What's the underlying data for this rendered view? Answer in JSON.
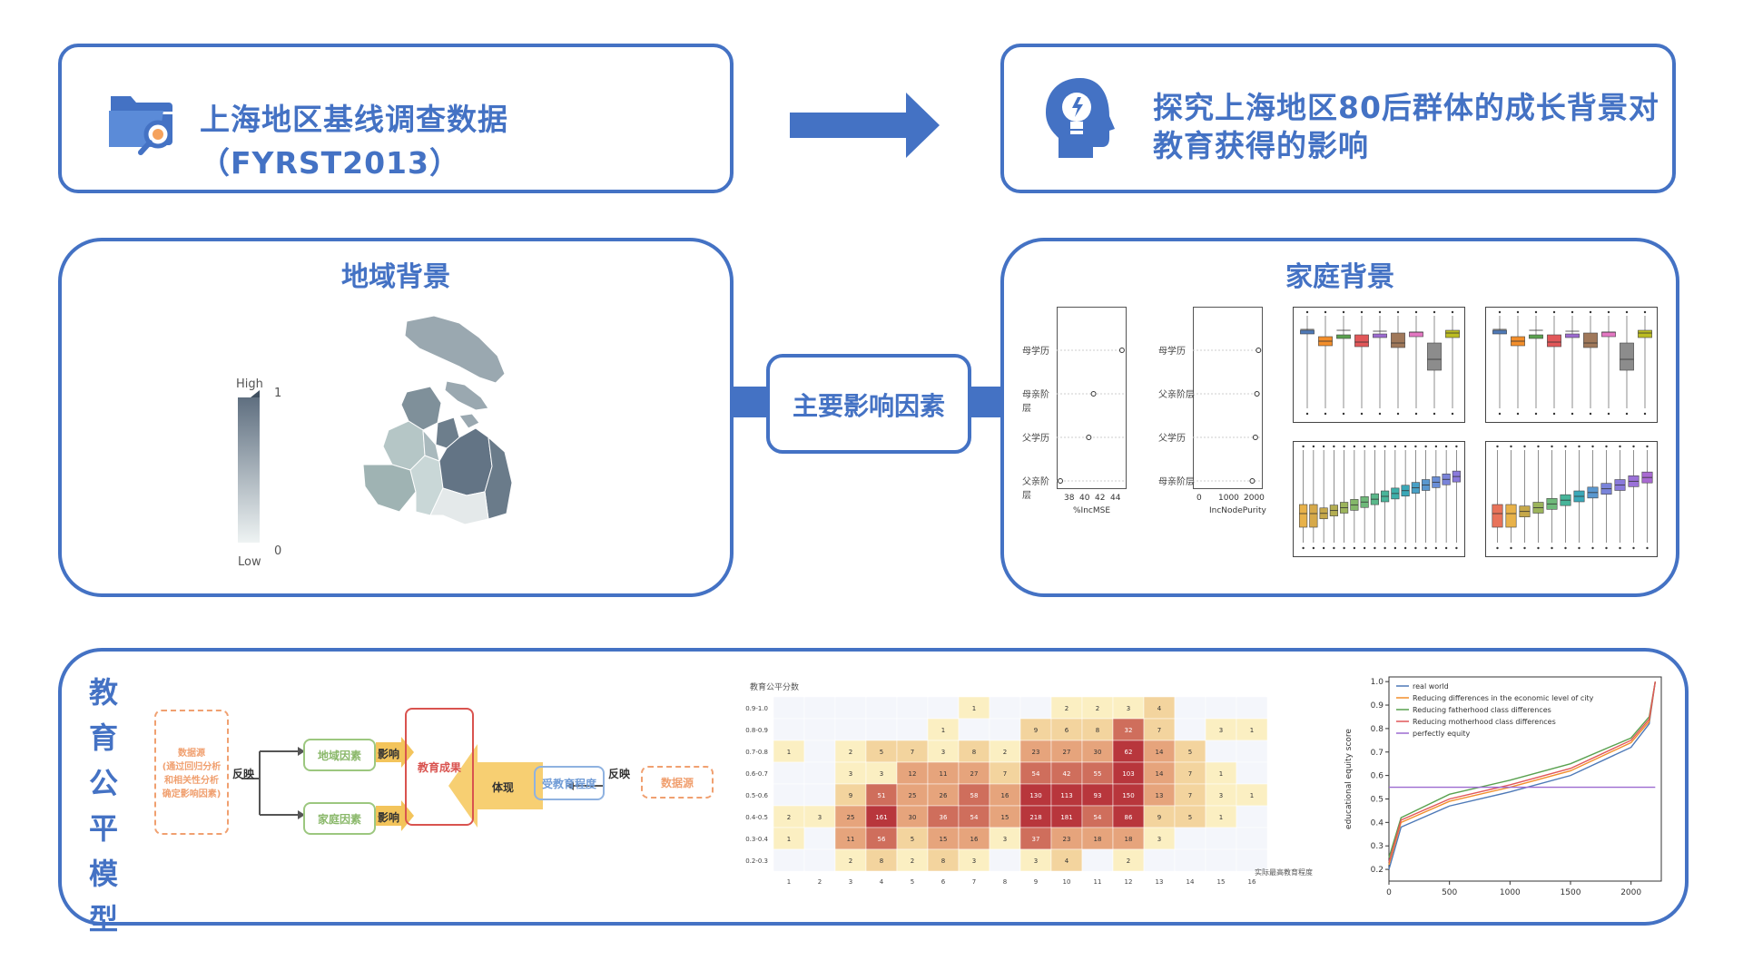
{
  "top": {
    "source_title": "上海地区基线调查数据（FYRST2013）",
    "goal_line1": "探究上海地区80后群体的成长背景对",
    "goal_line2": "教育获得的影响"
  },
  "middle": {
    "region_title": "地域背景",
    "family_title": "家庭背景",
    "center_label": "主要影响因素",
    "legend_high": "High",
    "legend_low": "Low",
    "legend_max": "1",
    "legend_min": "0",
    "importance": {
      "labels": [
        "母学历",
        "母亲阶层",
        "父学历",
        "父亲阶层"
      ],
      "mse_labels": [
        "母学历",
        "母亲阶层",
        "父学历",
        "父亲阶层"
      ],
      "mse_values": [
        44,
        41,
        40.5,
        37.5
      ],
      "mse_ticks": [
        "38",
        "40",
        "42",
        "44"
      ],
      "mse_xlabel": "%IncMSE",
      "purity_labels": [
        "母学历",
        "父亲阶层",
        "父学历",
        "母亲阶层"
      ],
      "purity_values": [
        2000,
        1950,
        1900,
        1800
      ],
      "purity_ticks": [
        "0",
        "1000",
        "2000"
      ],
      "purity_xlabel": "IncNodePurity"
    }
  },
  "bottom": {
    "vertical_title": [
      "教",
      "育",
      "公",
      "平",
      "模",
      "型"
    ],
    "flow": {
      "datasource_left": "数据源\n(通过回归分析和相关性分析确定影响因素)",
      "fanying1": "反映",
      "region_factor": "地域因素",
      "family_factor": "家庭因素",
      "yingxiang1": "影响",
      "yingxiang2": "影响",
      "outcome": "教育成果",
      "tixian": "体现",
      "degree": "受教育程度",
      "fanying2": "反映",
      "datasource_right": "数据源"
    },
    "heatmap": {
      "title": "教育公平分数",
      "xlabel": "实际最高教育程度",
      "rows": [
        "0.9-1.0",
        "0.8-0.9",
        "0.7-0.8",
        "0.6-0.7",
        "0.5-0.6",
        "0.4-0.5",
        "0.3-0.4",
        "0.2-0.3"
      ],
      "cols": [
        "1",
        "2",
        "3",
        "4",
        "5",
        "6",
        "7",
        "8",
        "9",
        "10",
        "11",
        "12",
        "13",
        "14",
        "15",
        "16"
      ],
      "values": [
        [
          0,
          0,
          0,
          0,
          0,
          0,
          1,
          0,
          0,
          2,
          2,
          3,
          4,
          0,
          0,
          0
        ],
        [
          0,
          0,
          0,
          0,
          0,
          1,
          0,
          0,
          9,
          6,
          8,
          32,
          7,
          0,
          3,
          1
        ],
        [
          1,
          0,
          2,
          5,
          7,
          3,
          8,
          2,
          23,
          27,
          30,
          62,
          14,
          5,
          0,
          0
        ],
        [
          0,
          0,
          3,
          3,
          12,
          11,
          27,
          7,
          54,
          42,
          55,
          103,
          14,
          7,
          1,
          0
        ],
        [
          0,
          0,
          9,
          51,
          25,
          26,
          58,
          16,
          130,
          113,
          93,
          150,
          13,
          7,
          3,
          1
        ],
        [
          2,
          3,
          25,
          161,
          30,
          36,
          54,
          15,
          218,
          181,
          54,
          86,
          9,
          5,
          1,
          0
        ],
        [
          1,
          0,
          11,
          56,
          5,
          15,
          16,
          3,
          37,
          23,
          18,
          18,
          3,
          0,
          0,
          0
        ],
        [
          0,
          0,
          2,
          8,
          2,
          8,
          3,
          0,
          3,
          4,
          0,
          2,
          0,
          0,
          0,
          0
        ]
      ]
    },
    "line_chart": {
      "ylabel": "educational equity score",
      "x_ticks": [
        "0",
        "500",
        "1000",
        "1500",
        "2000"
      ],
      "y_ticks": [
        "0.2",
        "0.3",
        "0.4",
        "0.5",
        "0.6",
        "0.7",
        "0.8",
        "0.9",
        "1.0"
      ],
      "legend": [
        {
          "name": "real world",
          "color": "#4e79b7"
        },
        {
          "name": "Reducing differences in the economic level of city",
          "color": "#f28e2b"
        },
        {
          "name": "Reducing fatherhood class differences",
          "color": "#59a14f"
        },
        {
          "name": "Reducing motherhood class differences",
          "color": "#e15759"
        },
        {
          "name": "perfectly equity",
          "color": "#9c6ad0"
        }
      ]
    }
  },
  "chart_data": [
    {
      "type": "line",
      "ylabel": "educational equity score",
      "xlim": [
        0,
        2250
      ],
      "ylim": [
        0.15,
        1.02
      ],
      "series": [
        {
          "name": "real world",
          "x": [
            0,
            100,
            500,
            1000,
            1500,
            2000,
            2150,
            2200
          ],
          "y": [
            0.2,
            0.38,
            0.47,
            0.53,
            0.6,
            0.72,
            0.82,
            1.0
          ]
        },
        {
          "name": "Reducing differences in the economic level of city",
          "x": [
            0,
            100,
            500,
            1000,
            1500,
            2000,
            2150,
            2200
          ],
          "y": [
            0.22,
            0.4,
            0.49,
            0.55,
            0.62,
            0.74,
            0.83,
            1.0
          ]
        },
        {
          "name": "Reducing fatherhood class differences",
          "x": [
            0,
            100,
            500,
            1000,
            1500,
            2000,
            2150,
            2200
          ],
          "y": [
            0.25,
            0.42,
            0.52,
            0.58,
            0.65,
            0.76,
            0.85,
            1.0
          ]
        },
        {
          "name": "Reducing motherhood class differences",
          "x": [
            0,
            100,
            500,
            1000,
            1500,
            2000,
            2150,
            2200
          ],
          "y": [
            0.23,
            0.41,
            0.5,
            0.56,
            0.63,
            0.75,
            0.84,
            1.0
          ]
        },
        {
          "name": "perfectly equity",
          "x": [
            0,
            2200
          ],
          "y": [
            0.55,
            0.55
          ]
        }
      ]
    },
    {
      "type": "heatmap",
      "title": "教育公平分数",
      "xlabel": "实际最高教育程度"
    }
  ]
}
